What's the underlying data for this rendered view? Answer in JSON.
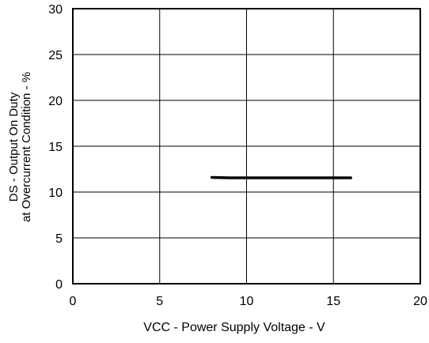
{
  "chart_data": {
    "type": "line",
    "title": "",
    "xlabel": "VCC - Power Supply Voltage  - V",
    "ylabel_lines": [
      "DS - Output On Duty",
      "at Overcurrent Condition - %"
    ],
    "xlim": [
      0,
      20
    ],
    "ylim": [
      0,
      30
    ],
    "x_ticks": [
      0,
      5,
      10,
      15,
      20
    ],
    "y_ticks": [
      0,
      5,
      10,
      15,
      20,
      25,
      30
    ],
    "x_tick_labels": [
      "0",
      "5",
      "10",
      "15",
      "20"
    ],
    "y_tick_labels": [
      "0",
      "5",
      "10",
      "15",
      "20",
      "25",
      "30"
    ],
    "grid": true,
    "legend": "none",
    "series": [
      {
        "x": [
          8,
          9,
          10,
          11,
          12,
          13,
          14,
          15,
          16
        ],
        "y": [
          11.6,
          11.55,
          11.55,
          11.55,
          11.55,
          11.55,
          11.55,
          11.55,
          11.55
        ],
        "color": "#000000"
      }
    ]
  }
}
